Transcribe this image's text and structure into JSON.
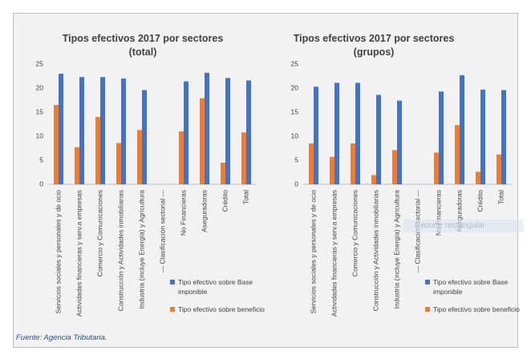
{
  "chart_data": [
    {
      "type": "bar",
      "title": "Tipos efectivos 2017 por sectores\n(total)",
      "categories": [
        "Servicios sociales y personales y de ocio",
        "Actividades financieras y serv.a empresas",
        "Comercio y Comunicaciones",
        "Construcción y Actividades inmobiliarias",
        "Industria (incluye Energía) y Agricultura",
        "--- Clasificación sectorial ---",
        "No Financieras",
        "Aseguradoras",
        "Crédito",
        "Total"
      ],
      "series": [
        {
          "name": "Tipo efectivo sobre Base imponible",
          "color": "#4472c4",
          "values": [
            23,
            22.3,
            22.3,
            22,
            19.6,
            null,
            21.4,
            23.2,
            22.1,
            21.6
          ]
        },
        {
          "name": "Tipo efectivo sobre beneficio",
          "color": "#ed7d31",
          "values": [
            16.5,
            7.7,
            14,
            8.6,
            11.3,
            null,
            11,
            17.9,
            4.5,
            10.8
          ]
        }
      ],
      "ylim": [
        0,
        25
      ],
      "yticks": [
        0,
        5,
        10,
        15,
        20,
        25
      ],
      "grid": false,
      "legend": "right"
    },
    {
      "type": "bar",
      "title": "Tipos efectivos 2017 por sectores\n(grupos)",
      "categories": [
        "Servicios sociales y personales y de ocio",
        "Actividades financieras y serv.a empresas",
        "Comercio y Comunicaciones",
        "Construcción y Actividades inmobiliarias",
        "Industria (incluye Energía) y Agricultura",
        "--- Clasificación sectorial ---",
        "No Financieras",
        "Aseguradoras",
        "Crédito",
        "Total"
      ],
      "series": [
        {
          "name": "Tipo efectivo sobre Base imponible",
          "color": "#4472c4",
          "values": [
            20.3,
            21.1,
            21.1,
            18.6,
            17.4,
            null,
            19.3,
            22.7,
            19.7,
            19.6
          ]
        },
        {
          "name": "Tipo efectivo sobre beneficio",
          "color": "#ed7d31",
          "values": [
            8.5,
            5.7,
            8.5,
            1.9,
            7.1,
            null,
            6.6,
            12.3,
            2.6,
            6.2
          ]
        }
      ],
      "ylim": [
        0,
        25
      ],
      "yticks": [
        0,
        5,
        10,
        15,
        20,
        25
      ],
      "grid": false,
      "legend": "right"
    }
  ],
  "source": "Fuente: Agencia Tributaria.",
  "overlay": "Recorte rectangular"
}
